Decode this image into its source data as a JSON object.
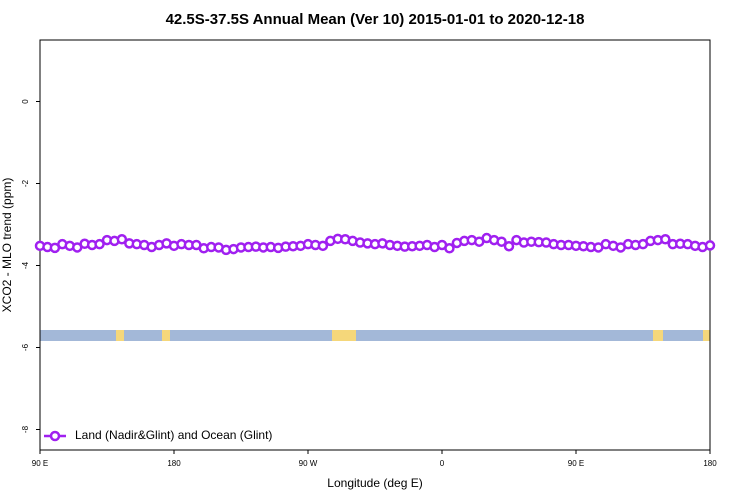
{
  "chart_data": {
    "type": "line",
    "title": "42.5S-37.5S Annual Mean (Ver 10)   2015-01-01 to 2020-12-18",
    "x_label": "Longitude (deg E)",
    "y_label": "XCO2 - MLO trend (ppm)",
    "xlim": [
      90,
      540
    ],
    "xticks": [
      {
        "value": 90,
        "label": "90 E"
      },
      180,
      {
        "value": 270,
        "label": "90 W"
      },
      {
        "value": 360,
        "label": "0"
      },
      {
        "value": 450,
        "label": "90 E"
      },
      {
        "value": 540,
        "label": "180"
      }
    ],
    "ylim": [
      -8.5,
      1.5
    ],
    "yticks": [
      0,
      -2,
      -4,
      -6,
      -8
    ],
    "x": [
      90,
      95,
      100,
      105,
      110,
      115,
      120,
      125,
      130,
      135,
      140,
      145,
      150,
      155,
      160,
      165,
      170,
      175,
      180,
      185,
      190,
      195,
      200,
      205,
      210,
      215,
      220,
      225,
      230,
      235,
      240,
      245,
      250,
      255,
      260,
      265,
      270,
      275,
      280,
      285,
      290,
      295,
      300,
      305,
      310,
      315,
      320,
      325,
      330,
      335,
      340,
      345,
      350,
      355,
      360,
      365,
      370,
      375,
      380,
      385,
      390,
      395,
      400,
      405,
      410,
      415,
      420,
      425,
      430,
      435,
      440,
      445,
      450,
      455,
      460,
      465,
      470,
      475,
      480,
      485,
      490,
      495,
      500,
      505,
      510,
      515,
      520,
      525,
      530,
      535,
      540
    ],
    "series": [
      {
        "name": "Land (Nadir&Glint) and Ocean (Glint)",
        "color": "#a020f0",
        "values": [
          -3.52,
          -3.55,
          -3.57,
          -3.48,
          -3.52,
          -3.56,
          -3.47,
          -3.5,
          -3.48,
          -3.38,
          -3.4,
          -3.36,
          -3.46,
          -3.48,
          -3.5,
          -3.55,
          -3.5,
          -3.46,
          -3.52,
          -3.48,
          -3.5,
          -3.5,
          -3.58,
          -3.55,
          -3.56,
          -3.62,
          -3.6,
          -3.56,
          -3.55,
          -3.54,
          -3.56,
          -3.55,
          -3.57,
          -3.54,
          -3.53,
          -3.52,
          -3.48,
          -3.5,
          -3.52,
          -3.4,
          -3.35,
          -3.36,
          -3.4,
          -3.44,
          -3.46,
          -3.48,
          -3.46,
          -3.5,
          -3.52,
          -3.54,
          -3.53,
          -3.52,
          -3.5,
          -3.55,
          -3.5,
          -3.58,
          -3.45,
          -3.4,
          -3.38,
          -3.42,
          -3.33,
          -3.38,
          -3.42,
          -3.53,
          -3.38,
          -3.44,
          -3.42,
          -3.43,
          -3.44,
          -3.48,
          -3.5,
          -3.5,
          -3.52,
          -3.53,
          -3.55,
          -3.56,
          -3.48,
          -3.52,
          -3.56,
          -3.48,
          -3.5,
          -3.48,
          -3.4,
          -3.38,
          -3.36,
          -3.48,
          -3.47,
          -3.48,
          -3.52,
          -3.55,
          -3.51
        ]
      }
    ],
    "legend": "bottom-left"
  }
}
